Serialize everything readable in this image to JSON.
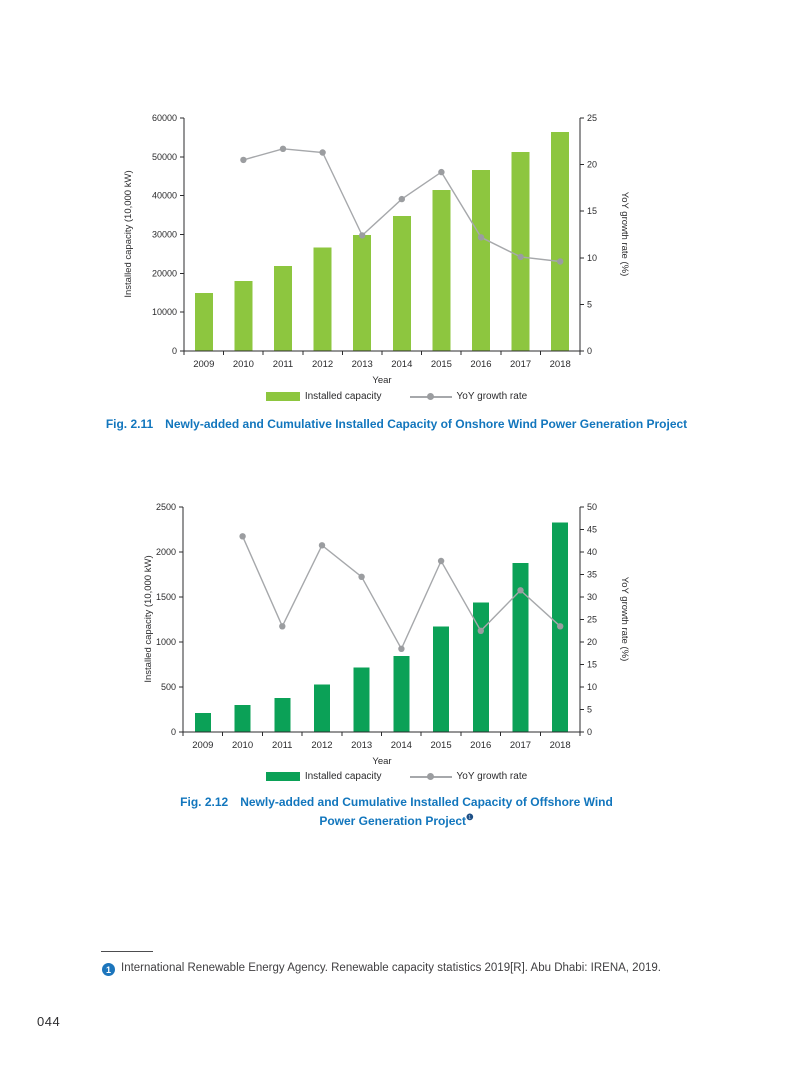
{
  "page": {
    "number": "044"
  },
  "chart_data": [
    {
      "type": "bar",
      "subtype": "bar+line dual axis",
      "categories": [
        "2009",
        "2010",
        "2011",
        "2012",
        "2013",
        "2014",
        "2015",
        "2016",
        "2017",
        "2018"
      ],
      "series": [
        {
          "name": "Installed capacity",
          "type": "bar",
          "axis": "left",
          "values": [
            14900,
            18000,
            21900,
            26600,
            29900,
            34800,
            41500,
            46600,
            51300,
            56400
          ]
        },
        {
          "name": "YoY growth rate",
          "type": "line",
          "axis": "right",
          "values": [
            null,
            20.5,
            21.7,
            21.3,
            12.4,
            16.3,
            19.2,
            12.2,
            10.1,
            9.6
          ]
        }
      ],
      "xlabel": "Year",
      "ylabel_left": "Installed capacity (10,000 kW)",
      "ylabel_right": "YoY growth rate (%)",
      "left_ticks": [
        0,
        10000,
        20000,
        30000,
        40000,
        50000,
        60000
      ],
      "right_ticks": [
        0,
        5,
        10,
        15,
        20,
        25
      ],
      "ylim_left": [
        0,
        60000
      ],
      "ylim_right": [
        0,
        25
      ],
      "grid": false,
      "legend_position": "bottom",
      "bar_color": "#8dc63f",
      "line_color": "#a6a8ab",
      "marker_color": "#9b9da0"
    },
    {
      "type": "bar",
      "subtype": "bar+line dual axis",
      "categories": [
        "2009",
        "2010",
        "2011",
        "2012",
        "2013",
        "2014",
        "2015",
        "2016",
        "2017",
        "2018"
      ],
      "series": [
        {
          "name": "Installed capacity",
          "type": "bar",
          "axis": "left",
          "values": [
            210,
            300,
            380,
            530,
            715,
            845,
            1170,
            1440,
            1880,
            2330
          ]
        },
        {
          "name": "YoY growth rate",
          "type": "line",
          "axis": "right",
          "values": [
            null,
            43.5,
            23.5,
            41.5,
            34.5,
            18.5,
            38,
            22.5,
            31.5,
            23.5
          ]
        }
      ],
      "xlabel": "Year",
      "ylabel_left": "Installed capacity (10,000 kW)",
      "ylabel_right": "YoY growth rate (%)",
      "left_ticks": [
        0,
        500,
        1000,
        1500,
        2000,
        2500
      ],
      "right_ticks": [
        0,
        5,
        10,
        15,
        20,
        25,
        30,
        35,
        40,
        45,
        50
      ],
      "ylim_left": [
        0,
        2500
      ],
      "ylim_right": [
        0,
        50
      ],
      "grid": false,
      "legend_position": "bottom",
      "bar_color": "#0ba157",
      "line_color": "#a6a8ab",
      "marker_color": "#9b9da0"
    }
  ],
  "figures": [
    {
      "fig_label": "Fig. 2.11",
      "caption": "Newly-added and Cumulative Installed Capacity of Onshore Wind Power Generation Project"
    },
    {
      "fig_label": "Fig. 2.12",
      "caption_line1": "Newly-added and Cumulative Installed Capacity of Offshore Wind",
      "caption_line2": "Power Generation Project",
      "superscript": "❶"
    }
  ],
  "footnote": {
    "marker": "1",
    "text": "International Renewable Energy Agency. Renewable capacity statistics 2019[R]. Abu Dhabi: IRENA, 2019."
  }
}
